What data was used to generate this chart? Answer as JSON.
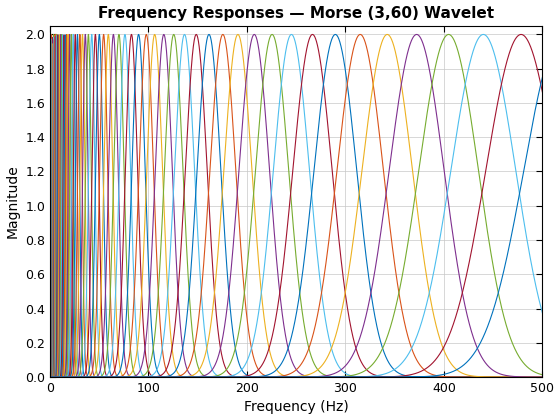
{
  "title": "Frequency Responses — Morse (3,60) Wavelet",
  "xlabel": "Frequency (Hz)",
  "ylabel": "Magnitude",
  "xlim": [
    0,
    500
  ],
  "ylim": [
    0,
    2.05
  ],
  "n_curves": 71,
  "freq_max": 500,
  "n_points": 4000,
  "gamma": 3,
  "beta": 60,
  "peak_magnitude": 2.0,
  "colors": [
    "#0072BD",
    "#D95319",
    "#EDB120",
    "#7E2F8E",
    "#77AC30",
    "#4DBEEE",
    "#A2142F"
  ],
  "yticks": [
    0,
    0.2,
    0.4,
    0.6,
    0.8,
    1.0,
    1.2,
    1.4,
    1.6,
    1.8,
    2.0
  ],
  "xticks": [
    0,
    100,
    200,
    300,
    400,
    500
  ],
  "grid": true,
  "background_color": "#ffffff",
  "title_fontsize": 11,
  "label_fontsize": 10,
  "f_min": 1.5,
  "f_max": 520.0,
  "log_spacing": true
}
